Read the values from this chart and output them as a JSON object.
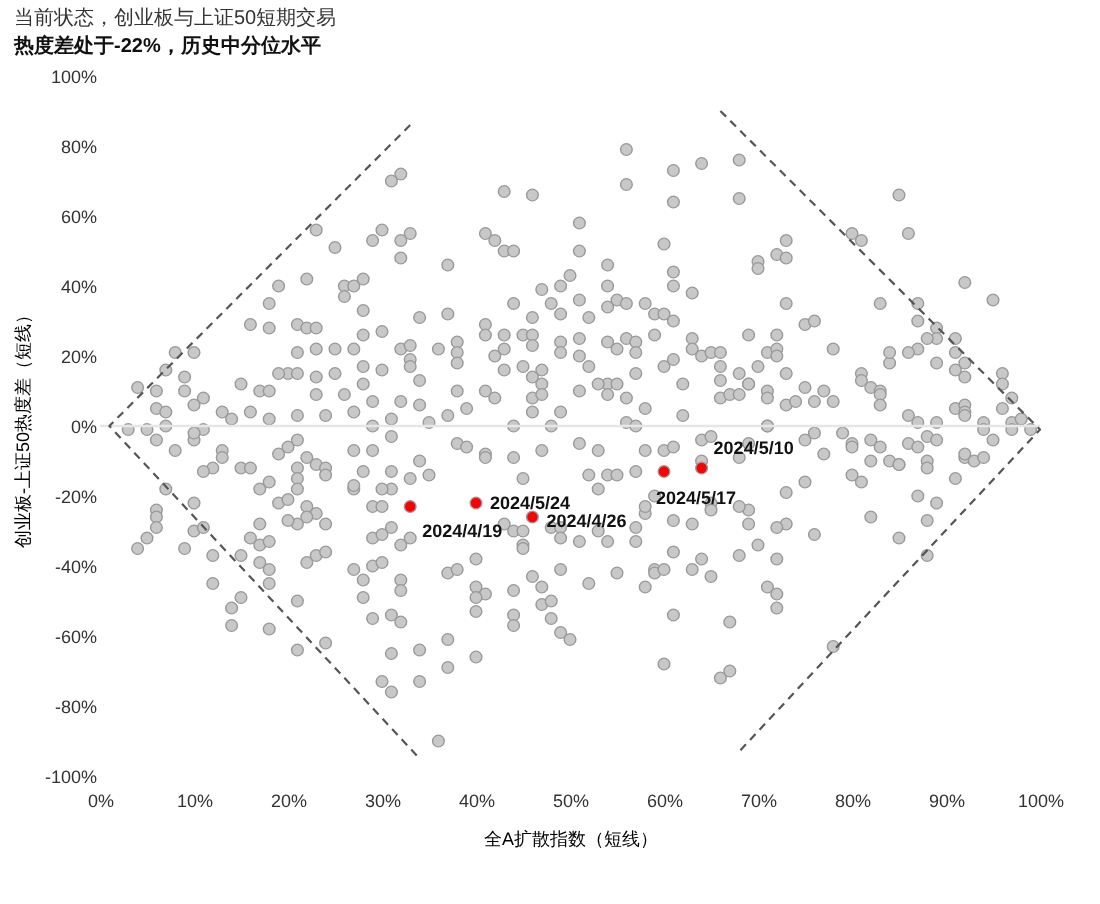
{
  "chart_data": {
    "type": "scatter",
    "title": "当前状态，创业板与上证50短期交易",
    "subtitle": "热度差处于-22%，历史中分位水平",
    "xlabel": "全A扩散指数（短线）",
    "ylabel": "创业板-上证50热度差（短线）",
    "marker": "circle",
    "xlim": [
      0,
      100
    ],
    "ylim": [
      -100,
      100
    ],
    "xticks": [
      {
        "value": 0,
        "label": "0%"
      },
      {
        "value": 10,
        "label": "10%"
      },
      {
        "value": 20,
        "label": "20%"
      },
      {
        "value": 30,
        "label": "30%"
      },
      {
        "value": 40,
        "label": "40%"
      },
      {
        "value": 50,
        "label": "50%"
      },
      {
        "value": 60,
        "label": "60%"
      },
      {
        "value": 70,
        "label": "70%"
      },
      {
        "value": 80,
        "label": "80%"
      },
      {
        "value": 90,
        "label": "90%"
      },
      {
        "value": 100,
        "label": "100%"
      }
    ],
    "yticks": [
      {
        "value": -100,
        "label": "-100%"
      },
      {
        "value": -80,
        "label": "-80%"
      },
      {
        "value": -60,
        "label": "-60%"
      },
      {
        "value": -40,
        "label": "-40%"
      },
      {
        "value": -20,
        "label": "-20%"
      },
      {
        "value": 0,
        "label": "0%"
      },
      {
        "value": 20,
        "label": "20%"
      },
      {
        "value": 40,
        "label": "40%"
      },
      {
        "value": 60,
        "label": "60%"
      },
      {
        "value": 80,
        "label": "80%"
      },
      {
        "value": 100,
        "label": "100%"
      }
    ],
    "ref_lines": [
      {
        "axis": "y",
        "value": 0,
        "color": "#e6e6e6"
      }
    ],
    "series": [
      {
        "color": "#c8c8c8",
        "x": [
          31,
          32,
          23,
          25,
          30,
          29,
          32,
          26,
          26,
          27,
          28,
          22,
          19,
          18,
          16,
          18,
          28,
          21,
          22,
          23,
          23,
          21,
          25,
          27,
          28,
          30,
          32,
          8,
          10,
          7,
          9,
          4,
          6,
          9,
          11,
          10,
          13,
          15,
          17,
          18,
          20,
          21,
          19,
          23,
          23,
          25,
          26,
          28,
          30,
          28,
          29,
          32,
          6,
          7,
          16,
          18,
          21,
          24,
          27,
          31,
          14,
          3,
          11,
          56,
          56,
          61,
          64,
          61,
          43,
          46,
          51,
          60,
          41,
          42,
          43,
          44,
          51,
          33,
          32,
          37,
          54,
          61,
          61,
          63,
          47,
          49,
          50,
          54,
          44,
          48,
          51,
          49,
          46,
          52,
          54,
          55,
          56,
          58,
          59,
          60,
          61,
          34,
          37,
          41,
          41,
          43,
          45,
          46,
          46,
          49,
          51,
          54,
          56,
          57,
          59,
          63,
          63,
          38,
          33,
          36,
          38,
          42,
          43,
          49,
          51,
          55,
          57,
          61,
          64,
          33,
          38,
          33,
          34,
          43,
          45,
          47,
          46,
          47,
          52,
          60,
          57,
          54,
          53,
          51,
          55,
          62,
          41,
          42,
          46,
          47,
          54,
          56,
          38,
          39,
          37,
          34,
          46,
          49,
          58,
          62,
          44,
          56,
          57,
          35,
          68,
          68,
          85,
          86,
          80,
          81,
          73,
          72,
          73,
          70,
          70,
          73,
          92,
          95,
          83,
          87,
          87,
          89,
          91,
          89,
          88,
          87,
          75,
          76,
          72,
          69,
          78,
          71,
          72,
          72,
          65,
          66,
          70,
          66,
          68,
          73,
          81,
          81,
          84,
          84,
          86,
          89,
          91,
          91,
          92,
          92,
          96,
          96,
          97,
          96,
          66,
          66,
          67,
          68,
          69,
          69,
          71,
          71,
          73,
          74,
          75,
          76,
          77,
          78,
          82,
          83,
          83,
          83,
          91,
          92,
          92,
          5,
          6,
          7,
          8,
          10,
          10,
          13,
          13,
          12,
          11,
          15,
          16,
          19,
          20,
          21,
          29,
          31,
          22,
          23,
          24,
          21,
          24,
          21,
          27,
          28,
          31,
          17,
          18,
          19,
          20,
          21,
          22,
          23,
          22,
          24,
          21,
          20,
          7,
          6,
          6,
          6,
          5,
          4,
          9,
          10,
          10,
          11,
          12,
          12,
          14,
          14,
          15,
          15,
          16,
          17,
          17,
          18,
          17,
          18,
          18,
          18,
          21,
          22,
          23,
          24,
          21,
          24,
          27,
          28,
          28,
          29,
          29,
          30,
          30,
          31,
          31,
          31,
          32,
          29,
          30,
          29,
          30,
          31,
          32,
          32,
          31,
          30,
          27,
          27,
          29,
          34,
          35,
          38,
          39,
          41,
          41,
          44,
          45,
          47,
          48,
          51,
          53,
          52,
          53,
          54,
          55,
          57,
          58,
          60,
          61,
          64,
          65,
          64,
          65,
          43,
          44,
          45,
          45,
          45,
          48,
          49,
          49,
          51,
          53,
          54,
          57,
          57,
          58,
          58,
          59,
          61,
          63,
          65,
          61,
          64,
          63,
          65,
          59,
          59,
          60,
          58,
          55,
          52,
          49,
          47,
          46,
          44,
          44,
          44,
          47,
          48,
          48,
          49,
          50,
          40,
          40,
          41,
          40,
          40,
          37,
          38,
          32,
          37,
          40,
          37,
          34,
          34,
          36,
          61,
          60,
          33,
          33,
          69,
          68,
          75,
          76,
          77,
          79,
          80,
          80,
          82,
          83,
          82,
          84,
          85,
          85,
          86,
          87,
          88,
          88,
          88,
          89,
          86,
          87,
          89,
          92,
          94,
          94,
          95,
          97,
          98,
          99,
          97,
          92,
          92,
          93,
          94,
          91,
          89,
          88,
          87,
          85,
          88,
          82,
          81,
          80,
          76,
          75,
          73,
          73,
          72,
          72,
          71,
          72,
          72,
          70,
          68,
          69,
          68,
          69,
          67,
          67,
          66,
          78,
          71,
          71
        ],
        "values": [
          70,
          72,
          56,
          51,
          56,
          53,
          53,
          40,
          37,
          40,
          42,
          42,
          40,
          35,
          29,
          28,
          33,
          29,
          28,
          28,
          22,
          21,
          22,
          22,
          26,
          27,
          22,
          21,
          21,
          16,
          14,
          11,
          10,
          10,
          8,
          6,
          4,
          12,
          10,
          10,
          15,
          15,
          15,
          14,
          9,
          15,
          9,
          17,
          16,
          12,
          7,
          7,
          5,
          4,
          4,
          2,
          3,
          3,
          4,
          2,
          2,
          -1,
          -1,
          79,
          69,
          73,
          75,
          64,
          67,
          66,
          58,
          52,
          55,
          53,
          50,
          50,
          50,
          55,
          48,
          46,
          46,
          44,
          40,
          38,
          39,
          40,
          43,
          40,
          35,
          35,
          36,
          32,
          31,
          31,
          34,
          36,
          35,
          35,
          32,
          32,
          30,
          31,
          32,
          29,
          26,
          26,
          26,
          26,
          23,
          24,
          25,
          24,
          25,
          24,
          26,
          25,
          22,
          24,
          23,
          22,
          21,
          20,
          22,
          21,
          20,
          22,
          21,
          19,
          20,
          19,
          18,
          17,
          13,
          16,
          17,
          16,
          14,
          12,
          17,
          17,
          15,
          12,
          12,
          10,
          12,
          12,
          10,
          8,
          8,
          9,
          9,
          8,
          10,
          5,
          3,
          6,
          4,
          4,
          5,
          3,
          0,
          1,
          0,
          1,
          76,
          65,
          66,
          55,
          55,
          53,
          53,
          49,
          48,
          47,
          45,
          35,
          41,
          36,
          35,
          35,
          30,
          28,
          25,
          25,
          25,
          22,
          29,
          30,
          26,
          26,
          22,
          21,
          22,
          20,
          21,
          21,
          17,
          17,
          15,
          15,
          15,
          13,
          18,
          21,
          21,
          18,
          21,
          16,
          18,
          14,
          15,
          12,
          8,
          5,
          13,
          8,
          9,
          9,
          12,
          12,
          10,
          8,
          6,
          7,
          11,
          7,
          10,
          7,
          11,
          10,
          9,
          6,
          5,
          6,
          4,
          -1,
          -4,
          0,
          -7,
          -4,
          -2,
          -7,
          -9,
          -12,
          -13,
          -12,
          -12,
          -8,
          -6,
          -4,
          0,
          -3,
          -9,
          -11,
          -12,
          -12,
          -14,
          -15,
          -7,
          -13,
          -13,
          -18,
          -16,
          -22,
          -21,
          -18,
          -23,
          -25,
          -26,
          -28,
          -28,
          -27,
          -18,
          -24,
          -26,
          -29,
          -32,
          -35,
          -35,
          -30,
          -22,
          -29,
          -37,
          -45,
          -52,
          -57,
          -37,
          -49,
          -32,
          -28,
          -34,
          -33,
          -39,
          -41,
          -45,
          -58,
          -50,
          -39,
          -37,
          -36,
          -64,
          -62,
          -41,
          -44,
          -49,
          -55,
          -40,
          -39,
          -73,
          -76,
          -65,
          -54,
          -56,
          -23,
          -23,
          -32,
          -31,
          -29,
          -34,
          -44,
          -18,
          -18,
          -18,
          -17,
          -7,
          -10,
          -14,
          -5,
          -6,
          -8,
          -9,
          -9,
          -15,
          -7,
          0,
          -5,
          -7,
          -14,
          -18,
          -14,
          -14,
          -13,
          -7,
          -7,
          -6,
          -4,
          -3,
          -10,
          -22,
          -28,
          -30,
          -30,
          -34,
          -35,
          -29,
          -29,
          -32,
          -33,
          -30,
          -33,
          -33,
          -29,
          -25,
          -23,
          -20,
          -27,
          -28,
          -24,
          -36,
          -38,
          -41,
          -43,
          -41,
          -42,
          -41,
          -46,
          -42,
          -45,
          -41,
          -46,
          -43,
          -47,
          -54,
          -57,
          -51,
          -50,
          -55,
          -59,
          -61,
          -38,
          -46,
          -48,
          -49,
          -53,
          -42,
          -41,
          -47,
          -61,
          -66,
          -69,
          -64,
          -73,
          -90,
          -54,
          -68,
          -15,
          -32,
          -5,
          -9,
          -4,
          -2,
          -8,
          -2,
          -5,
          -6,
          -4,
          -6,
          -10,
          -10,
          -11,
          -11,
          -5,
          -6,
          -10,
          -12,
          -3,
          -4,
          3,
          1,
          1,
          3,
          1,
          -1,
          -4,
          1,
          2,
          -1,
          -1,
          -9,
          -8,
          -10,
          -9,
          -15,
          -22,
          -27,
          -20,
          -32,
          -37,
          -26,
          -16,
          -14,
          -31,
          -16,
          -19,
          -28,
          -29,
          -38,
          -46,
          -48,
          -52,
          -34,
          -37,
          -24,
          -23,
          -28,
          -56,
          -70,
          -72,
          -63,
          0,
          0
        ]
      },
      {
        "color": "#ff0000",
        "x": [
          33,
          40,
          46,
          60,
          64
        ],
        "values": [
          -23,
          -22,
          -26,
          -13,
          -12
        ]
      },
      {
        "type": "line",
        "color": "#555555",
        "line_style": "dashed",
        "marker": "none",
        "x": [
          33,
          1,
          34
        ],
        "values": [
          86,
          0,
          -95
        ]
      },
      {
        "type": "line",
        "color": "#555555",
        "line_style": "dashed",
        "marker": "none",
        "x": [
          66,
          100,
          68
        ],
        "values": [
          90,
          -1,
          -93
        ]
      }
    ],
    "annotations": [
      {
        "text": "2024/4/19",
        "x": 33,
        "y": -23
      },
      {
        "text": "2024/5/24",
        "x": 40,
        "y": -22
      },
      {
        "text": "2024/4/26",
        "x": 46,
        "y": -26
      },
      {
        "text": "2024/5/17",
        "x": 60,
        "y": -13
      },
      {
        "text": "2024/5/10",
        "x": 64,
        "y": -12
      }
    ]
  }
}
